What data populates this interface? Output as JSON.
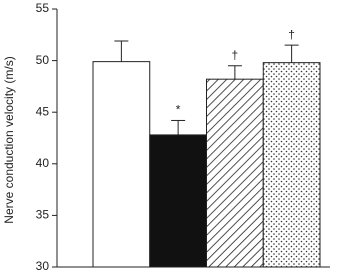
{
  "chart_data": {
    "type": "bar",
    "y_label": "Nerve conduction velocity (m/s)",
    "categories": [
      null,
      null,
      null,
      null
    ],
    "values": [
      49.9,
      42.8,
      48.2,
      49.8
    ],
    "errors": [
      2.0,
      1.4,
      1.3,
      1.7
    ],
    "annotations": [
      null,
      "*",
      "†",
      "†"
    ],
    "bar_styles": [
      "open",
      "solid",
      "hatched",
      "dotted"
    ],
    "color": "#111111",
    "ylim": [
      30,
      55
    ],
    "yticks": [
      30,
      35,
      40,
      45,
      50,
      55
    ],
    "grid": false
  }
}
